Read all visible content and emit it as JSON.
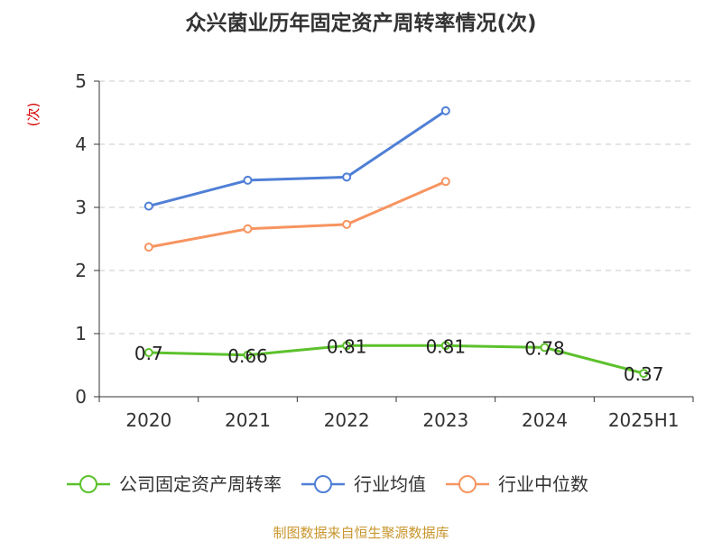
{
  "chart_data": {
    "type": "line",
    "title": "众兴菌业历年固定资产周转率情况(次)",
    "ylabel": "(次)",
    "categories": [
      "2020",
      "2021",
      "2022",
      "2023",
      "2024",
      "2025H1"
    ],
    "ylim": [
      0,
      5
    ],
    "yticks": [
      "0",
      "1",
      "2",
      "3",
      "4",
      "5"
    ],
    "grid": true,
    "legend_position": "bottom",
    "series": [
      {
        "name": "公司固定资产周转率",
        "color": "#5cc12c",
        "values": [
          0.7,
          0.66,
          0.81,
          0.81,
          0.78,
          0.37
        ],
        "labels": [
          "0.7",
          "0.66",
          "0.81",
          "0.81",
          "0.78",
          "0.37"
        ]
      },
      {
        "name": "行业均值",
        "color": "#4f7fd6",
        "values": [
          3.02,
          3.43,
          3.48,
          4.53,
          null,
          null
        ]
      },
      {
        "name": "行业中位数",
        "color": "#f79460",
        "values": [
          2.37,
          2.66,
          2.73,
          3.41,
          null,
          null
        ]
      }
    ],
    "source": "制图数据来自恒生聚源数据库"
  }
}
